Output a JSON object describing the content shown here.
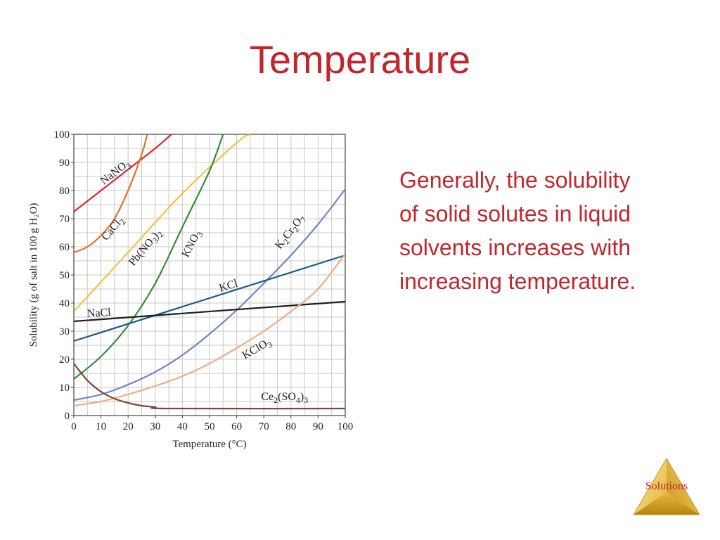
{
  "slide": {
    "title": "Temperature",
    "body": "Generally, the solubility of solid solutes in liquid solvents increases with increasing temperature.",
    "nav_label": "Solutions"
  },
  "colors": {
    "title": "#c0272d",
    "NaNO3": "#d7282f",
    "CaCl2": "#e0712a",
    "Pb(NO3)2": "#f4c244",
    "KNO3": "#3a8a36",
    "K2Cr2O7": "#6f86c8",
    "KCl": "#195c8c",
    "NaCl": "#1e1e1e",
    "KClO3": "#f2ab84",
    "Ce2(SO4)3": "#7a4a36"
  },
  "chart_data": {
    "type": "line",
    "xlabel": "Temperature (°C)",
    "ylabel": "Solubility (g of salt in 100 g H₂O)",
    "xlim": [
      0,
      100
    ],
    "ylim": [
      0,
      100
    ],
    "xticks": [
      "0",
      "10",
      "20",
      "30",
      "40",
      "50",
      "60",
      "70",
      "80",
      "90",
      "100"
    ],
    "yticks": [
      "0",
      "10",
      "20",
      "30",
      "40",
      "50",
      "60",
      "70",
      "80",
      "90",
      "100"
    ],
    "grid": true,
    "series": [
      {
        "name": "NaNO3",
        "label_parts": [
          "NaNO",
          "3"
        ],
        "color": "#d7282f",
        "x": [
          0,
          10,
          20,
          30,
          36
        ],
        "y": [
          72.5,
          80,
          87.5,
          95,
          100
        ]
      },
      {
        "name": "CaCl2",
        "label_parts": [
          "CaCl",
          "2"
        ],
        "color": "#e0712a",
        "x": [
          0,
          5,
          10,
          15,
          20,
          24,
          26,
          27
        ],
        "y": [
          58,
          60,
          64,
          70,
          80,
          90,
          96,
          100
        ]
      },
      {
        "name": "Pb(NO3)2",
        "label_parts": [
          "Pb(NO",
          "3",
          ")",
          "2"
        ],
        "color": "#f4c244",
        "x": [
          0,
          20,
          40,
          60,
          65
        ],
        "y": [
          37,
          58,
          79,
          97,
          100
        ]
      },
      {
        "name": "KNO3",
        "label_parts": [
          "KNO",
          "3"
        ],
        "color": "#3a8a36",
        "x": [
          0,
          10,
          20,
          30,
          40,
          50,
          55
        ],
        "y": [
          13,
          21,
          32,
          47,
          67,
          87,
          100
        ]
      },
      {
        "name": "K2Cr2O7",
        "label_parts": [
          "K",
          "2",
          "Cr",
          "2",
          "O",
          "7"
        ],
        "color": "#6f86c8",
        "x": [
          0,
          10,
          20,
          30,
          40,
          50,
          60,
          70,
          80,
          90,
          100
        ],
        "y": [
          5.5,
          7.5,
          11,
          15.5,
          21.5,
          29,
          37.5,
          47,
          57,
          68,
          80.5
        ]
      },
      {
        "name": "KCl",
        "label_parts": [
          "KCl"
        ],
        "color": "#195c8c",
        "x": [
          0,
          100
        ],
        "y": [
          26.5,
          57
        ]
      },
      {
        "name": "NaCl",
        "label_parts": [
          "NaCl"
        ],
        "color": "#1e1e1e",
        "x": [
          0,
          100
        ],
        "y": [
          33.5,
          40.5
        ]
      },
      {
        "name": "KClO3",
        "label_parts": [
          "KClO",
          "3"
        ],
        "color": "#f2ab84",
        "x": [
          0,
          10,
          20,
          30,
          40,
          50,
          60,
          70,
          80,
          90,
          100
        ],
        "y": [
          3.5,
          5,
          7.5,
          10.5,
          14,
          18.5,
          24,
          30,
          37,
          45,
          57.5
        ]
      },
      {
        "name": "Ce2(SO4)3",
        "label_parts": [
          "Ce",
          "2",
          "(SO",
          "4",
          ")",
          "3"
        ],
        "color": "#7a4a36",
        "x": [
          0,
          5,
          10,
          15,
          20,
          25,
          30,
          35,
          100
        ],
        "y": [
          18.5,
          12.5,
          8.5,
          6,
          4.5,
          3.5,
          3,
          2.5,
          2.5
        ]
      }
    ]
  }
}
